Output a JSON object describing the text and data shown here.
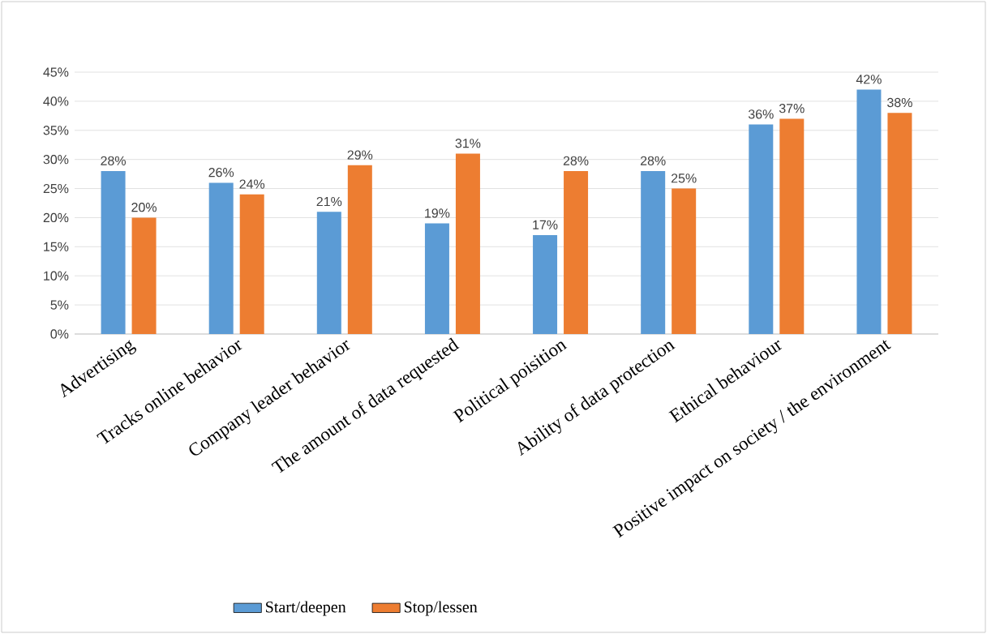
{
  "chart_data": {
    "type": "bar",
    "categories": [
      "Advertising",
      "Tracks  online behavior",
      "Company leader behavior",
      "The amount of data requested",
      "Political poisition",
      "Ability of data protection",
      "Ethical behaviour",
      "Positive impact on society / the environment"
    ],
    "series": [
      {
        "name": "Start/deepen",
        "color": "#5b9bd5",
        "values": [
          28,
          26,
          21,
          19,
          17,
          28,
          36,
          42
        ],
        "value_labels": [
          "28%",
          "26%",
          "21%",
          "19%",
          "17%",
          "28%",
          "36%",
          "42%"
        ]
      },
      {
        "name": "Stop/lessen",
        "color": "#ed7d31",
        "values": [
          20,
          24,
          29,
          31,
          28,
          25,
          37,
          38
        ],
        "value_labels": [
          "20%",
          "24%",
          "29%",
          "31%",
          "28%",
          "25%",
          "37%",
          "38%"
        ]
      }
    ],
    "ylim": [
      0,
      45
    ],
    "yticks": [
      {
        "value": 0,
        "label": "0%"
      },
      {
        "value": 5,
        "label": "5%"
      },
      {
        "value": 10,
        "label": "10%"
      },
      {
        "value": 15,
        "label": "15%"
      },
      {
        "value": 20,
        "label": "20%"
      },
      {
        "value": 25,
        "label": "25%"
      },
      {
        "value": 30,
        "label": "30%"
      },
      {
        "value": 35,
        "label": "35%"
      },
      {
        "value": 40,
        "label": "40%"
      },
      {
        "value": 45,
        "label": "45%"
      }
    ],
    "grid": "y",
    "legend": "bottom"
  }
}
